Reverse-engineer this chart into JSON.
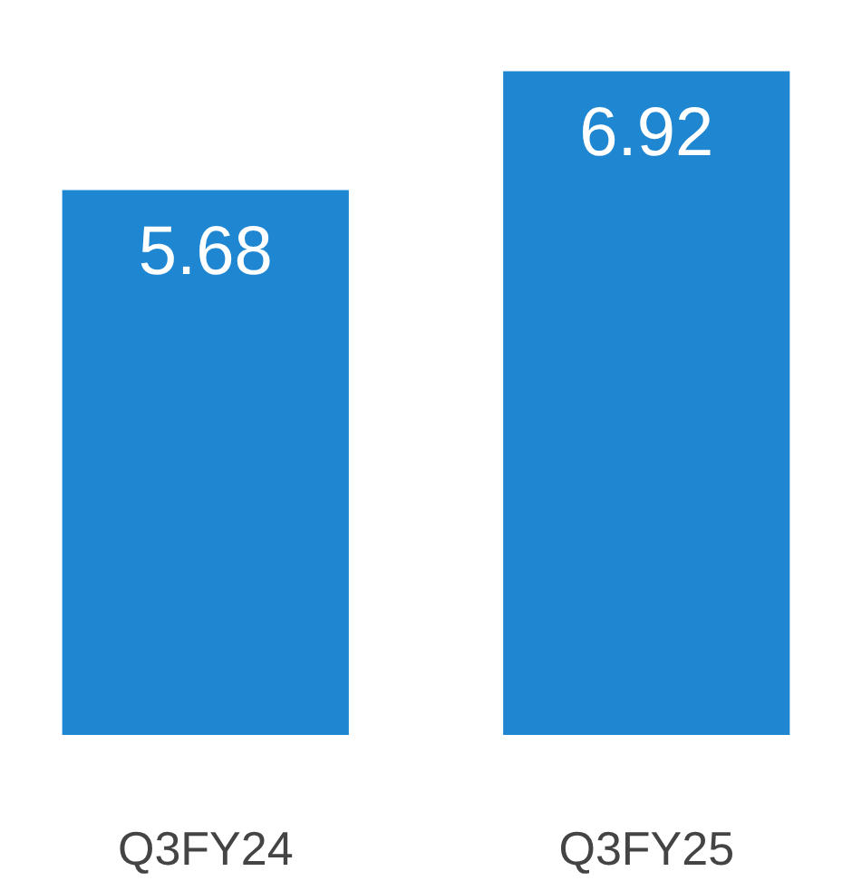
{
  "chart_data": {
    "type": "bar",
    "categories": [
      "Q3FY24",
      "Q3FY25"
    ],
    "values": [
      5.68,
      6.92
    ],
    "color": "#1f86d2",
    "data_labels": true
  }
}
